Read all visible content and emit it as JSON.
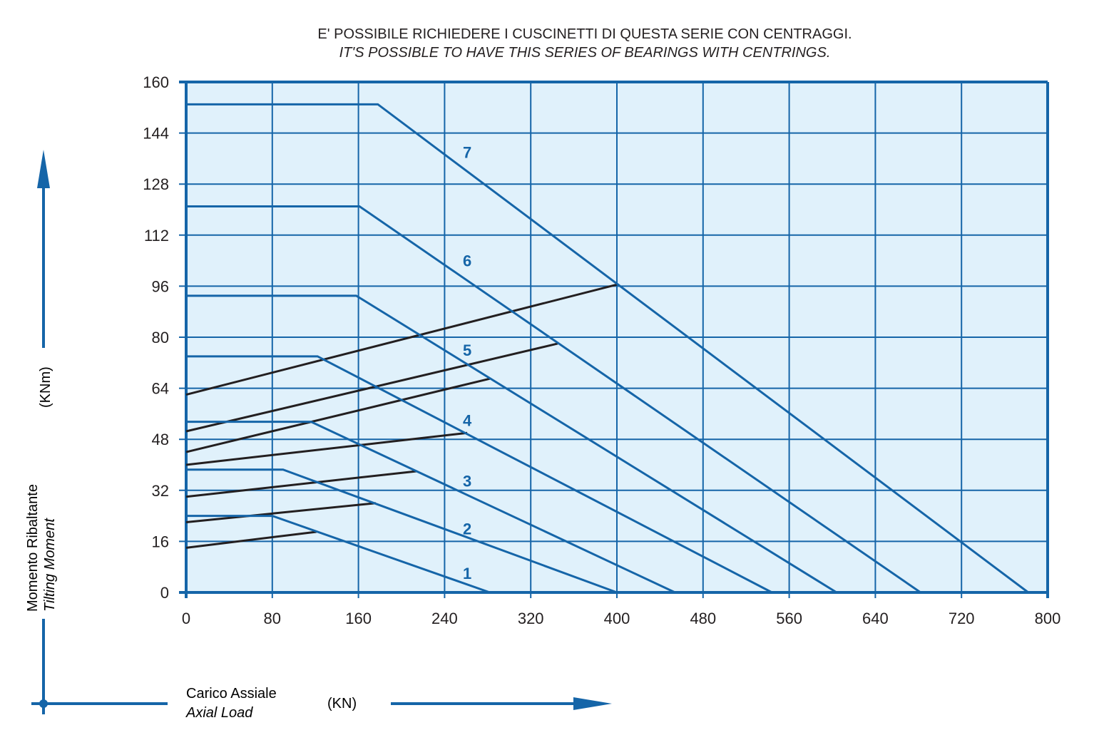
{
  "header": {
    "title_it": "E' POSSIBILE RICHIEDERE I CUSCINETTI DI QUESTA SERIE CON CENTRAGGI.",
    "title_en": "IT'S POSSIBLE TO HAVE THIS SERIES OF BEARINGS WITH CENTRINGS."
  },
  "colors": {
    "plot_bg": "#e0f1fb",
    "grid": "#1565a8",
    "series": "#1565a8",
    "bolt": "#231f20",
    "text": "#231f20"
  },
  "chart_data": {
    "type": "line",
    "xlabel": "Carico Assiale",
    "xlabel_en": "Axial Load",
    "xunit": "(KN)",
    "ylabel": "Momento Ribaltante",
    "ylabel_en": "Tilting Moment",
    "yunit": "(KNm)",
    "xlim": [
      0,
      800
    ],
    "ylim": [
      0,
      160
    ],
    "xticks": [
      0,
      80,
      160,
      240,
      320,
      400,
      480,
      560,
      640,
      720,
      800
    ],
    "yticks": [
      0,
      16,
      32,
      48,
      64,
      80,
      96,
      112,
      128,
      144,
      160
    ],
    "grid": true,
    "series": [
      {
        "name": "1",
        "x": [
          0,
          80,
          282
        ],
        "y": [
          24,
          24,
          0
        ],
        "label_at": [
          261,
          6
        ]
      },
      {
        "name": "2",
        "x": [
          0,
          90,
          400
        ],
        "y": [
          38.5,
          38.5,
          0
        ],
        "label_at": [
          261,
          20
        ]
      },
      {
        "name": "3",
        "x": [
          0,
          116,
          454
        ],
        "y": [
          53.5,
          53.5,
          0
        ],
        "label_at": [
          261,
          35
        ]
      },
      {
        "name": "4",
        "x": [
          0,
          122,
          544
        ],
        "y": [
          74,
          74,
          0
        ],
        "label_at": [
          261,
          54
        ]
      },
      {
        "name": "5",
        "x": [
          0,
          158,
          604
        ],
        "y": [
          93,
          93,
          0
        ],
        "label_at": [
          261,
          76
        ]
      },
      {
        "name": "6",
        "x": [
          0,
          161,
          682
        ],
        "y": [
          121,
          121,
          0
        ],
        "label_at": [
          261,
          104
        ]
      },
      {
        "name": "7",
        "x": [
          0,
          178,
          782
        ],
        "y": [
          153,
          153,
          0
        ],
        "label_at": [
          261,
          138
        ]
      }
    ],
    "bolt_limits": [
      {
        "x": [
          0,
          121
        ],
        "y": [
          14,
          19
        ]
      },
      {
        "x": [
          0,
          176
        ],
        "y": [
          22,
          28
        ]
      },
      {
        "x": [
          0,
          214
        ],
        "y": [
          30,
          38
        ]
      },
      {
        "x": [
          0,
          261
        ],
        "y": [
          40,
          50
        ]
      },
      {
        "x": [
          0,
          282
        ],
        "y": [
          44,
          67
        ]
      },
      {
        "x": [
          0,
          345
        ],
        "y": [
          50.5,
          78
        ]
      },
      {
        "x": [
          0,
          400
        ],
        "y": [
          62,
          96.5
        ]
      }
    ]
  }
}
